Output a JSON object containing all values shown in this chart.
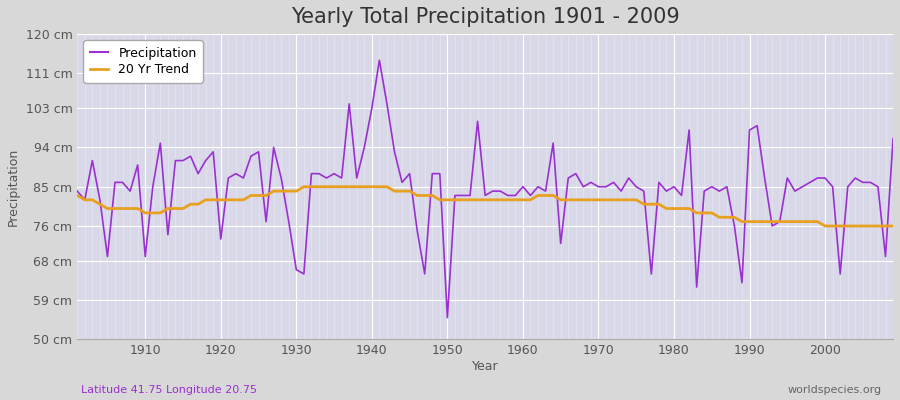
{
  "title": "Yearly Total Precipitation 1901 - 2009",
  "xlabel": "Year",
  "ylabel": "Precipitation",
  "subtitle_left": "Latitude 41.75 Longitude 20.75",
  "subtitle_right": "worldspecies.org",
  "years": [
    1901,
    1902,
    1903,
    1904,
    1905,
    1906,
    1907,
    1908,
    1909,
    1910,
    1911,
    1912,
    1913,
    1914,
    1915,
    1916,
    1917,
    1918,
    1919,
    1920,
    1921,
    1922,
    1923,
    1924,
    1925,
    1926,
    1927,
    1928,
    1929,
    1930,
    1931,
    1932,
    1933,
    1934,
    1935,
    1936,
    1937,
    1938,
    1939,
    1940,
    1941,
    1942,
    1943,
    1944,
    1945,
    1946,
    1947,
    1948,
    1949,
    1950,
    1951,
    1952,
    1953,
    1954,
    1955,
    1956,
    1957,
    1958,
    1959,
    1960,
    1961,
    1962,
    1963,
    1964,
    1965,
    1966,
    1967,
    1968,
    1969,
    1970,
    1971,
    1972,
    1973,
    1974,
    1975,
    1976,
    1977,
    1978,
    1979,
    1980,
    1981,
    1982,
    1983,
    1984,
    1985,
    1986,
    1987,
    1988,
    1989,
    1990,
    1991,
    1992,
    1993,
    1994,
    1995,
    1996,
    1997,
    1998,
    1999,
    2000,
    2001,
    2002,
    2003,
    2004,
    2005,
    2006,
    2007,
    2008,
    2009
  ],
  "precipitation": [
    84,
    82,
    91,
    82,
    69,
    86,
    86,
    84,
    90,
    69,
    85,
    95,
    74,
    91,
    91,
    92,
    88,
    91,
    93,
    73,
    87,
    88,
    87,
    92,
    93,
    77,
    94,
    87,
    77,
    66,
    65,
    88,
    88,
    87,
    88,
    87,
    104,
    87,
    94,
    103,
    114,
    104,
    93,
    86,
    88,
    75,
    65,
    88,
    88,
    55,
    83,
    83,
    83,
    100,
    83,
    84,
    84,
    83,
    83,
    85,
    83,
    85,
    84,
    95,
    72,
    87,
    88,
    85,
    86,
    85,
    85,
    86,
    84,
    87,
    85,
    84,
    65,
    86,
    84,
    85,
    83,
    98,
    62,
    84,
    85,
    84,
    85,
    76,
    63,
    98,
    99,
    87,
    76,
    77,
    87,
    84,
    85,
    86,
    87,
    87,
    85,
    65,
    85,
    87,
    86,
    86,
    85,
    69,
    96
  ],
  "trend": [
    83,
    82,
    82,
    81,
    80,
    80,
    80,
    80,
    80,
    79,
    79,
    79,
    80,
    80,
    80,
    81,
    81,
    82,
    82,
    82,
    82,
    82,
    82,
    83,
    83,
    83,
    84,
    84,
    84,
    84,
    85,
    85,
    85,
    85,
    85,
    85,
    85,
    85,
    85,
    85,
    85,
    85,
    84,
    84,
    84,
    83,
    83,
    83,
    82,
    82,
    82,
    82,
    82,
    82,
    82,
    82,
    82,
    82,
    82,
    82,
    82,
    83,
    83,
    83,
    82,
    82,
    82,
    82,
    82,
    82,
    82,
    82,
    82,
    82,
    82,
    81,
    81,
    81,
    80,
    80,
    80,
    80,
    79,
    79,
    79,
    78,
    78,
    78,
    77,
    77,
    77,
    77,
    77,
    77,
    77,
    77,
    77,
    77,
    77,
    76,
    76,
    76,
    76,
    76,
    76,
    76,
    76,
    76,
    76
  ],
  "precip_color": "#9b30d0",
  "trend_color": "#e8a020",
  "fig_bg_color": "#d8d8d8",
  "plot_bg_color": "#d8d8e8",
  "grid_color": "#ffffff",
  "grid_major_color": "#c8c8d8",
  "ylim": [
    50,
    120
  ],
  "yticks": [
    50,
    59,
    68,
    76,
    85,
    94,
    103,
    111,
    120
  ],
  "ytick_labels": [
    "50 cm",
    "59 cm",
    "68 cm",
    "76 cm",
    "85 cm",
    "94 cm",
    "103 cm",
    "111 cm",
    "120 cm"
  ],
  "xlim": [
    1901,
    2009
  ],
  "xticks": [
    1910,
    1920,
    1930,
    1940,
    1950,
    1960,
    1970,
    1980,
    1990,
    2000
  ],
  "title_fontsize": 15,
  "axis_label_fontsize": 9,
  "tick_fontsize": 9,
  "legend_fontsize": 9,
  "annot_fontsize": 8,
  "annot_left_color": "#9b30d0",
  "annot_right_color": "#666666"
}
